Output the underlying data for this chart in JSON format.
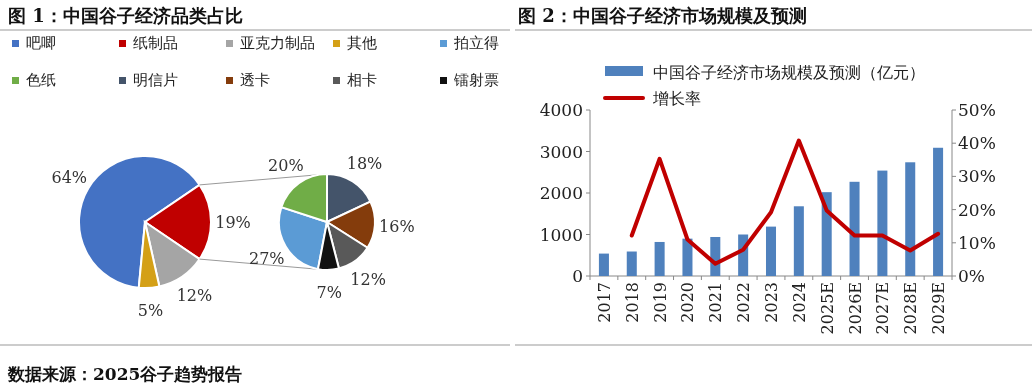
{
  "chart_data": [
    {
      "type": "pie",
      "title": "图 1：中国谷子经济品类占比",
      "categories": [
        "吧唧",
        "纸制品",
        "亚克力制品",
        "其他"
      ],
      "values": [
        64,
        19,
        12,
        5
      ],
      "value_labels": [
        "64%",
        "19%",
        "12%",
        "5%"
      ],
      "colors": [
        "#4472c4",
        "#c00000",
        "#a5a5a5",
        "#d4a017"
      ],
      "legend": "top",
      "annotations": [
        "数据来源：2025谷子趋势报告"
      ]
    },
    {
      "type": "pie",
      "categories": [
        "拍立得",
        "色纸",
        "明信片",
        "透卡",
        "相卡",
        "镭射票"
      ],
      "values": [
        27,
        20,
        18,
        16,
        12,
        7
      ],
      "value_labels": [
        "27%",
        "20%",
        "18%",
        "16%",
        "12%",
        "7%"
      ],
      "colors": [
        "#5b9bd5",
        "#70ad47",
        "#44546a",
        "#843c0c",
        "#595959",
        "#111111"
      ],
      "legend": "top"
    },
    {
      "type": "bar",
      "title": "图 2：中国谷子经济市场规模及预测",
      "categories": [
        "2017",
        "2018",
        "2019",
        "2020",
        "2021",
        "2022",
        "2023",
        "2024",
        "2025E",
        "2026E",
        "2027E",
        "2028E",
        "2029E"
      ],
      "series": [
        {
          "name": "中国谷子经济市场规模及预测（亿元）",
          "type": "bar",
          "color": "#4f81bd",
          "values": [
            540,
            590,
            820,
            900,
            940,
            1000,
            1190,
            1680,
            2020,
            2270,
            2540,
            2740,
            3090
          ]
        },
        {
          "name": "增长率",
          "type": "line",
          "axis": "y2",
          "color": "#c00000",
          "values": [
            null,
            12.2,
            35.3,
            11.0,
            3.7,
            7.9,
            19.2,
            40.8,
            19.7,
            12.2,
            12.2,
            7.7,
            12.7
          ]
        }
      ],
      "ylim": [
        0,
        4000
      ],
      "yticks": [
        0,
        1000,
        2000,
        3000,
        4000
      ],
      "y2lim": [
        0,
        50
      ],
      "y2ticks": [
        {
          "value": 0,
          "label": "0%"
        },
        {
          "value": 10,
          "label": "10%"
        },
        {
          "value": 20,
          "label": "20%"
        },
        {
          "value": 30,
          "label": "30%"
        },
        {
          "value": 40,
          "label": "40%"
        },
        {
          "value": 50,
          "label": "50%"
        }
      ],
      "legend": "top left",
      "grid": false,
      "marker": "none"
    }
  ]
}
